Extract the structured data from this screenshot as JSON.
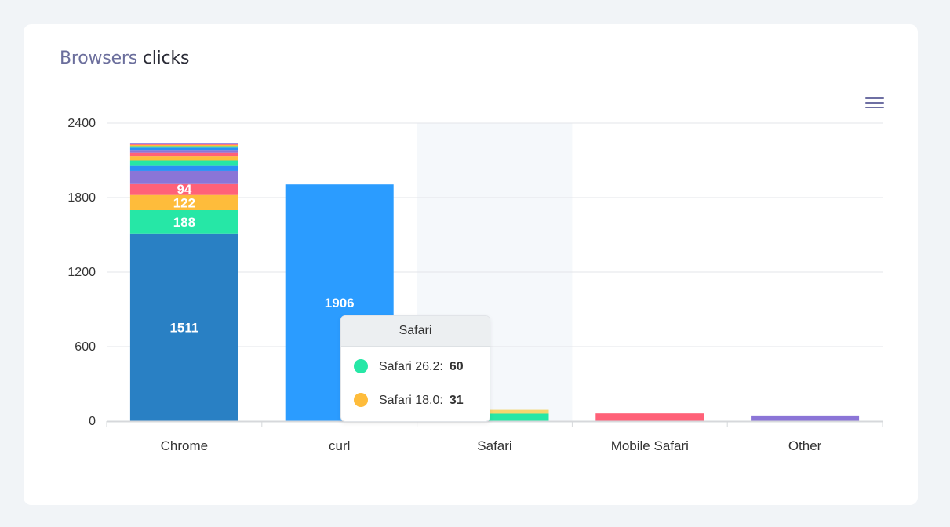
{
  "card": {
    "title_part1": "Browsers",
    "title_part2": "clicks"
  },
  "toolbar": {
    "menu_icon": "hamburger-menu-icon"
  },
  "chart_data": {
    "type": "bar",
    "stacked": true,
    "categories": [
      "Chrome",
      "curl",
      "Safari",
      "Mobile Safari",
      "Other"
    ],
    "ylim": [
      0,
      2400
    ],
    "yticks": [
      0,
      600,
      1200,
      1800,
      2400
    ],
    "grid": true,
    "hovered_category": "Safari",
    "stacks": [
      {
        "category": "Chrome",
        "segments": [
          {
            "value": 1511,
            "color": "#2980c4",
            "label": "1511"
          },
          {
            "value": 188,
            "color": "#26e7a6",
            "label": "188"
          },
          {
            "value": 122,
            "color": "#febc3b",
            "label": "122"
          },
          {
            "value": 94,
            "color": "#ff6178",
            "label": "94"
          },
          {
            "value": 100,
            "color": "#8b75d7",
            "label": ""
          },
          {
            "value": 40,
            "color": "#2b90f5",
            "label": ""
          },
          {
            "value": 45,
            "color": "#26e7a6",
            "label": ""
          },
          {
            "value": 34,
            "color": "#febc3b",
            "label": ""
          },
          {
            "value": 28,
            "color": "#ff6178",
            "label": ""
          },
          {
            "value": 22,
            "color": "#8b75d7",
            "label": ""
          },
          {
            "value": 18,
            "color": "#2b90f5",
            "label": ""
          },
          {
            "value": 12,
            "color": "#26e7a6",
            "label": ""
          },
          {
            "value": 10,
            "color": "#febc3b",
            "label": ""
          },
          {
            "value": 9,
            "color": "#ff6178",
            "label": ""
          },
          {
            "value": 8,
            "color": "#8b75d7",
            "label": ""
          }
        ]
      },
      {
        "category": "curl",
        "segments": [
          {
            "value": 1906,
            "color": "#2b9cff",
            "label": "1906"
          }
        ]
      },
      {
        "category": "Safari",
        "segments": [
          {
            "value": 60,
            "color": "#26e7a6",
            "label": ""
          },
          {
            "value": 31,
            "color": "#f5d66f",
            "label": ""
          }
        ]
      },
      {
        "category": "Mobile Safari",
        "segments": [
          {
            "value": 62,
            "color": "#ff6178",
            "label": ""
          }
        ]
      },
      {
        "category": "Other",
        "segments": [
          {
            "value": 45,
            "color": "#8b75d7",
            "label": ""
          }
        ]
      }
    ]
  },
  "tooltip": {
    "title": "Safari",
    "rows": [
      {
        "name": "Safari 26.2:",
        "value": "60",
        "color": "#26e7a6"
      },
      {
        "name": "Safari 18.0:",
        "value": "31",
        "color": "#febc3b"
      }
    ]
  }
}
